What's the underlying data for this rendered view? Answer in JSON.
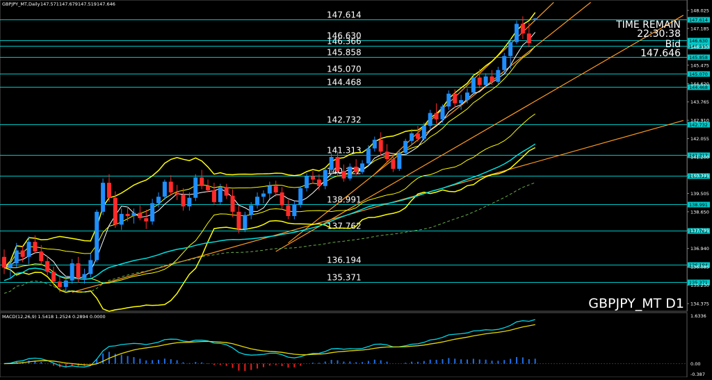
{
  "header": {
    "symbol_label": "GBPJPY_MT,Daily",
    "ohlc": [
      "147.571",
      "147.679",
      "147.519",
      "147.646"
    ]
  },
  "symbol_timeframe": "GBPJPY_MT D1",
  "info_panel": {
    "time_remain_label": "TIME REMAIN",
    "time_remain_value": "22:30:38",
    "bid_label": "Bid",
    "bid_value": "147.646"
  },
  "macd": {
    "label": "MACD(12,26,9) 1.5418 1.2524 0.2894 0.0000",
    "axis_ticks": [
      "1.6336",
      "0.00",
      "-0.387"
    ],
    "colors": {
      "main": "#00d8e8",
      "signal": "#e8d800",
      "hist_pos": "#1f6fe8",
      "hist_neg": "#e81f1f"
    }
  },
  "colors": {
    "bull": "#1f8fff",
    "bear": "#ff2a2a",
    "bollinger": "#ffff00",
    "trend": "#ff9a1f",
    "level": "#00c8c8",
    "ma_long": "#00e0e0",
    "ma_dash": "#6ab04a",
    "axis_text": "#ffffff"
  },
  "chart_data": {
    "type": "candlestick",
    "price_axis_ticks": [
      "148.025",
      "147.185",
      "146.330",
      "145.475",
      "144.620",
      "143.765",
      "142.910",
      "142.055",
      "141.200",
      "140.345",
      "139.505",
      "138.650",
      "137.795",
      "136.940",
      "136.085",
      "135.230",
      "134.375"
    ],
    "levels": [
      {
        "value": "147.614"
      },
      {
        "value": "146.630"
      },
      {
        "value": "146.366"
      },
      {
        "value": "145.858"
      },
      {
        "value": "145.070"
      },
      {
        "value": "144.468"
      },
      {
        "value": "142.732"
      },
      {
        "value": "141.313"
      },
      {
        "value": "140.322"
      },
      {
        "value": "138.991"
      },
      {
        "value": "137.762"
      },
      {
        "value": "136.194"
      },
      {
        "value": "135.371"
      }
    ],
    "candles": [
      [
        136.55,
        136.9,
        135.75,
        136.05
      ],
      [
        136.05,
        136.4,
        135.55,
        136.25
      ],
      [
        136.25,
        137.2,
        136.05,
        136.85
      ],
      [
        136.85,
        137.05,
        136.3,
        136.55
      ],
      [
        136.55,
        137.5,
        136.2,
        137.25
      ],
      [
        137.25,
        137.55,
        136.7,
        136.8
      ],
      [
        136.8,
        137.1,
        136.15,
        136.35
      ],
      [
        136.35,
        136.6,
        135.7,
        135.85
      ],
      [
        135.85,
        136.1,
        135.2,
        135.4
      ],
      [
        135.4,
        135.7,
        134.9,
        135.15
      ],
      [
        135.15,
        135.65,
        134.95,
        135.45
      ],
      [
        135.45,
        136.45,
        135.3,
        136.25
      ],
      [
        136.25,
        136.55,
        135.35,
        135.55
      ],
      [
        135.55,
        136.0,
        135.3,
        135.75
      ],
      [
        135.75,
        136.7,
        135.6,
        136.4
      ],
      [
        136.4,
        138.75,
        136.3,
        138.65
      ],
      [
        138.65,
        140.2,
        138.5,
        140.0
      ],
      [
        140.0,
        140.4,
        139.1,
        139.3
      ],
      [
        139.3,
        139.6,
        137.9,
        138.05
      ],
      [
        138.05,
        138.8,
        137.8,
        138.55
      ],
      [
        138.55,
        138.9,
        138.2,
        138.45
      ],
      [
        138.45,
        138.8,
        138.1,
        138.6
      ],
      [
        138.6,
        138.95,
        138.25,
        138.35
      ],
      [
        138.35,
        138.75,
        137.85,
        138.2
      ],
      [
        138.2,
        139.25,
        138.05,
        139.05
      ],
      [
        139.05,
        139.55,
        138.85,
        139.35
      ],
      [
        139.35,
        140.15,
        139.2,
        140.05
      ],
      [
        140.05,
        140.35,
        139.4,
        139.55
      ],
      [
        139.55,
        139.9,
        139.2,
        139.45
      ],
      [
        139.45,
        139.75,
        138.7,
        138.9
      ],
      [
        138.9,
        139.55,
        138.7,
        139.3
      ],
      [
        139.3,
        140.4,
        139.15,
        140.25
      ],
      [
        140.25,
        140.6,
        139.7,
        139.85
      ],
      [
        139.85,
        140.15,
        139.55,
        139.65
      ],
      [
        139.65,
        140.0,
        138.95,
        139.1
      ],
      [
        139.1,
        139.95,
        139.0,
        139.8
      ],
      [
        139.8,
        139.95,
        139.25,
        139.4
      ],
      [
        139.4,
        139.7,
        138.4,
        138.65
      ],
      [
        138.65,
        138.95,
        137.65,
        137.85
      ],
      [
        137.85,
        138.65,
        137.7,
        138.5
      ],
      [
        138.5,
        139.1,
        138.3,
        138.95
      ],
      [
        138.95,
        139.55,
        138.8,
        139.35
      ],
      [
        139.35,
        139.65,
        139.05,
        139.5
      ],
      [
        139.5,
        140.05,
        139.25,
        139.85
      ],
      [
        139.85,
        140.1,
        139.35,
        139.55
      ],
      [
        139.55,
        139.8,
        138.75,
        138.95
      ],
      [
        138.95,
        139.2,
        138.3,
        138.45
      ],
      [
        138.45,
        139.15,
        138.3,
        139.0
      ],
      [
        139.0,
        139.85,
        138.85,
        139.75
      ],
      [
        139.75,
        140.45,
        139.6,
        140.3
      ],
      [
        140.3,
        140.55,
        139.95,
        140.15
      ],
      [
        140.15,
        140.4,
        139.65,
        139.85
      ],
      [
        139.85,
        140.75,
        139.7,
        140.6
      ],
      [
        140.6,
        141.35,
        140.45,
        141.2
      ],
      [
        141.2,
        141.45,
        140.35,
        140.55
      ],
      [
        140.55,
        140.85,
        140.05,
        140.2
      ],
      [
        140.2,
        140.9,
        140.1,
        140.75
      ],
      [
        140.75,
        141.1,
        140.35,
        140.5
      ],
      [
        140.5,
        141.05,
        140.4,
        140.9
      ],
      [
        140.9,
        141.75,
        140.8,
        141.6
      ],
      [
        141.6,
        142.15,
        141.45,
        142.0
      ],
      [
        142.0,
        142.35,
        141.25,
        141.45
      ],
      [
        141.45,
        141.8,
        140.95,
        141.1
      ],
      [
        141.1,
        141.4,
        140.5,
        140.65
      ],
      [
        140.65,
        141.55,
        140.55,
        141.4
      ],
      [
        141.4,
        142.05,
        141.3,
        141.95
      ],
      [
        141.95,
        142.5,
        141.75,
        142.3
      ],
      [
        142.3,
        142.65,
        141.9,
        142.05
      ],
      [
        142.05,
        142.8,
        141.95,
        142.65
      ],
      [
        142.65,
        143.4,
        142.5,
        143.25
      ],
      [
        143.25,
        143.7,
        142.75,
        142.95
      ],
      [
        142.95,
        143.65,
        142.8,
        143.55
      ],
      [
        143.55,
        144.3,
        143.4,
        144.15
      ],
      [
        144.15,
        144.35,
        143.5,
        143.7
      ],
      [
        143.7,
        144.1,
        143.4,
        143.85
      ],
      [
        143.85,
        144.4,
        143.7,
        144.2
      ],
      [
        144.2,
        145.05,
        144.1,
        144.9
      ],
      [
        144.9,
        145.3,
        144.4,
        144.55
      ],
      [
        144.55,
        145.1,
        144.4,
        144.95
      ],
      [
        144.95,
        145.25,
        144.55,
        144.7
      ],
      [
        144.7,
        145.4,
        144.6,
        145.25
      ],
      [
        145.25,
        146.05,
        145.1,
        145.9
      ],
      [
        145.9,
        146.7,
        145.3,
        146.55
      ],
      [
        146.55,
        147.55,
        146.45,
        147.4
      ],
      [
        147.4,
        147.75,
        146.7,
        146.95
      ],
      [
        146.95,
        147.45,
        146.3,
        146.5
      ],
      [
        147.57,
        147.68,
        147.52,
        147.65
      ]
    ]
  }
}
